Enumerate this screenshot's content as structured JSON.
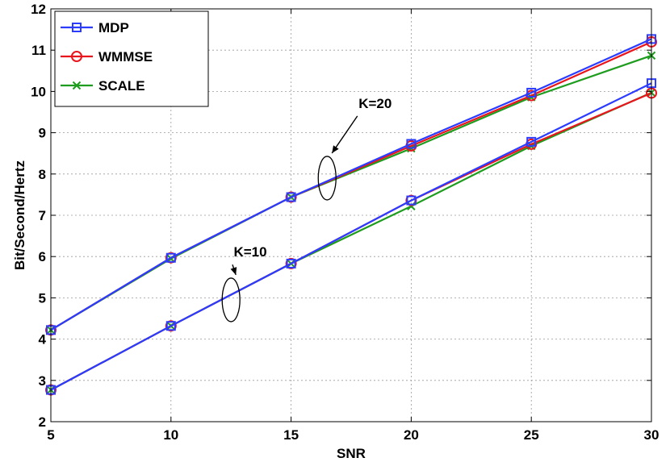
{
  "chart_data": {
    "type": "line",
    "title": "",
    "xlabel": "SNR",
    "ylabel": "Bit/Second/Hertz",
    "xlim": [
      5,
      30
    ],
    "ylim": [
      2,
      12
    ],
    "x_ticks": [
      5,
      10,
      15,
      20,
      25,
      30
    ],
    "y_ticks": [
      2,
      3,
      4,
      5,
      6,
      7,
      8,
      9,
      10,
      11,
      12
    ],
    "grid": true,
    "legend_position": "top-left",
    "x": [
      5,
      10,
      15,
      20,
      25,
      30
    ],
    "series": [
      {
        "name": "MDP",
        "group": "K=20",
        "color": "#2b3cff",
        "marker": "square",
        "values": [
          4.22,
          5.97,
          7.44,
          8.73,
          9.97,
          11.27
        ],
        "in_legend": true
      },
      {
        "name": "WMMSE",
        "group": "K=20",
        "color": "#e8161c",
        "marker": "circle",
        "values": [
          4.22,
          5.97,
          7.44,
          8.68,
          9.9,
          11.2
        ],
        "in_legend": true
      },
      {
        "name": "SCALE",
        "group": "K=20",
        "color": "#1e9c1e",
        "marker": "x",
        "values": [
          4.22,
          5.95,
          7.44,
          8.62,
          9.86,
          10.87
        ],
        "in_legend": true
      },
      {
        "name": "MDP",
        "group": "K=10",
        "color": "#2b3cff",
        "marker": "square",
        "values": [
          2.77,
          4.32,
          5.83,
          7.36,
          8.78,
          10.2
        ],
        "in_legend": false
      },
      {
        "name": "WMMSE",
        "group": "K=10",
        "color": "#e8161c",
        "marker": "circle",
        "values": [
          2.77,
          4.32,
          5.83,
          7.36,
          8.72,
          9.96
        ],
        "in_legend": false
      },
      {
        "name": "SCALE",
        "group": "K=10",
        "color": "#1e9c1e",
        "marker": "x",
        "values": [
          2.77,
          4.32,
          5.83,
          7.22,
          8.68,
          9.97
        ],
        "in_legend": false
      }
    ],
    "legend": [
      "MDP",
      "WMMSE",
      "SCALE"
    ],
    "annotations": [
      {
        "text": "K=20",
        "ellipse_at": [
          16.5,
          7.9
        ],
        "text_at": [
          18.5,
          9.6
        ]
      },
      {
        "text": "K=10",
        "ellipse_at": [
          12.5,
          4.95
        ],
        "text_at": [
          13.3,
          6.0
        ]
      }
    ]
  }
}
